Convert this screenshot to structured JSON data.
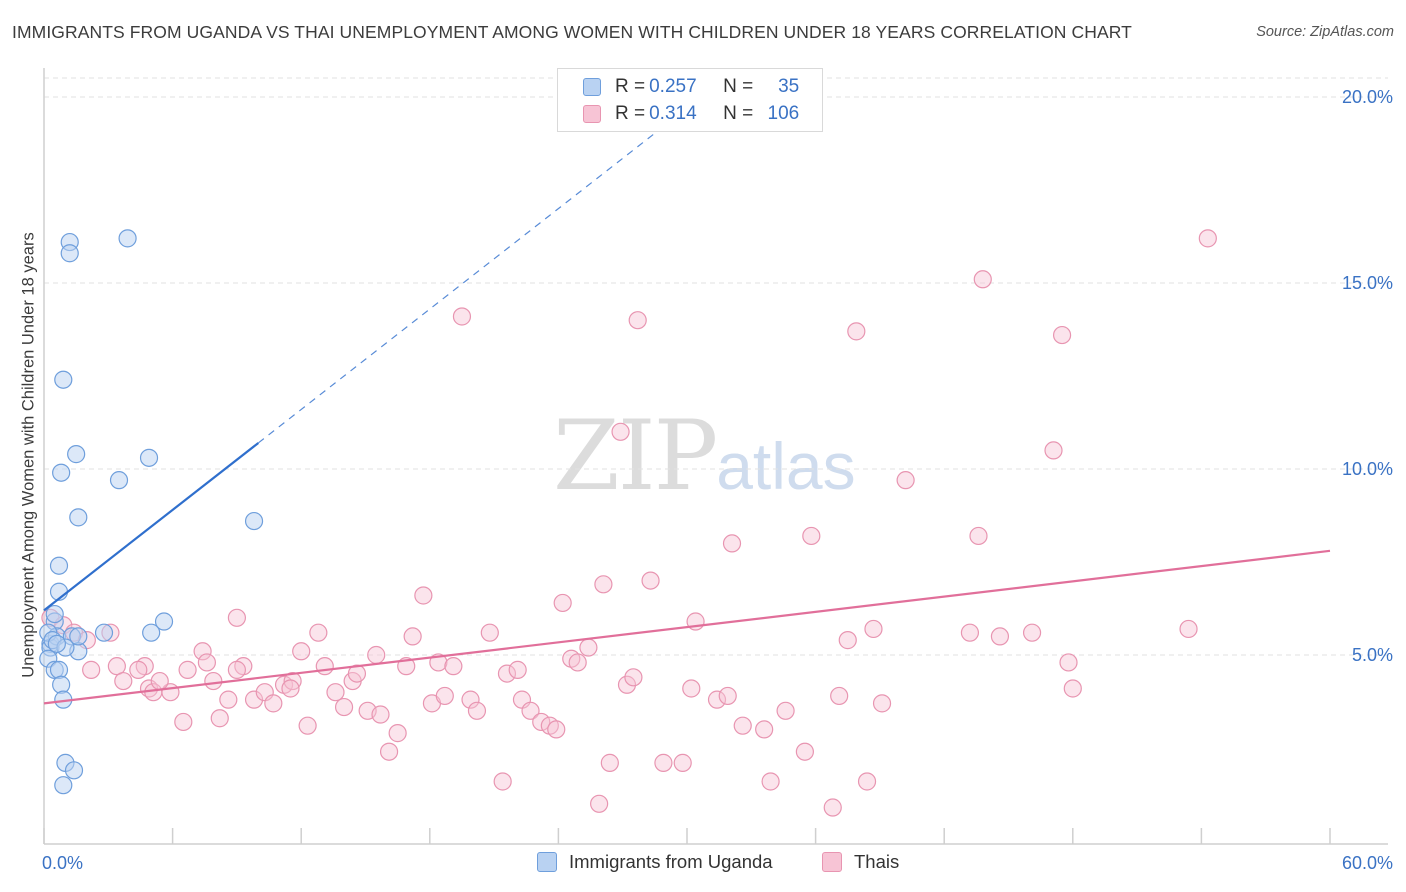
{
  "title": "IMMIGRANTS FROM UGANDA VS THAI UNEMPLOYMENT AMONG WOMEN WITH CHILDREN UNDER 18 YEARS CORRELATION CHART",
  "source": "Source: ZipAtlas.com",
  "watermark": {
    "zip": "ZIP",
    "atlas": "atlas"
  },
  "legend": {
    "uganda": {
      "r_label": "R = ",
      "r_value": "0.257",
      "n_label": "N = ",
      "n_value": "35"
    },
    "thai": {
      "r_label": "R = ",
      "r_value": "0.314",
      "n_label": "N = ",
      "n_value": "106"
    }
  },
  "colors": {
    "uganda_fill": "#b9d2f2",
    "uganda_stroke": "#6f9fdc",
    "uganda_line": "#2f6fcd",
    "thai_fill": "#f7c4d5",
    "thai_stroke": "#e895b1",
    "thai_line": "#e16f9a",
    "axis_text": "#3a72c4",
    "grid": "#e2e2e2"
  },
  "chart_data": {
    "type": "scatter",
    "title": "IMMIGRANTS FROM UGANDA VS THAI UNEMPLOYMENT AMONG WOMEN WITH CHILDREN UNDER 18 YEARS CORRELATION CHART",
    "xlabel": "",
    "ylabel": "Unemployment Among Women with Children Under 18 years",
    "xlim": [
      0,
      60
    ],
    "ylim": [
      0,
      21
    ],
    "x_tick_labels": [
      "0.0%",
      "60.0%"
    ],
    "y_ticks": [
      {
        "value": 5,
        "label": "5.0%"
      },
      {
        "value": 10,
        "label": "10.0%"
      },
      {
        "value": 15,
        "label": "15.0%"
      },
      {
        "value": 20,
        "label": "20.0%"
      }
    ],
    "legend_position": "bottom-center",
    "series": [
      {
        "name": "Immigrants from Uganda",
        "r": 0.257,
        "n": 35,
        "trend": {
          "x0": 0,
          "y0": 6.2,
          "x1": 10.0,
          "y1": 10.7,
          "dashed_to_x": 30.0
        },
        "points": [
          [
            1.2,
            16.1
          ],
          [
            1.2,
            15.8
          ],
          [
            3.9,
            16.2
          ],
          [
            0.9,
            12.4
          ],
          [
            1.5,
            10.4
          ],
          [
            4.9,
            10.3
          ],
          [
            0.8,
            9.9
          ],
          [
            3.5,
            9.7
          ],
          [
            1.6,
            8.7
          ],
          [
            9.8,
            8.6
          ],
          [
            0.7,
            7.4
          ],
          [
            0.7,
            6.7
          ],
          [
            0.5,
            5.9
          ],
          [
            0.5,
            6.1
          ],
          [
            0.3,
            5.3
          ],
          [
            0.3,
            5.2
          ],
          [
            0.6,
            5.5
          ],
          [
            0.2,
            4.9
          ],
          [
            0.5,
            4.6
          ],
          [
            0.7,
            4.6
          ],
          [
            1.3,
            5.5
          ],
          [
            1.6,
            5.1
          ],
          [
            2.8,
            5.6
          ],
          [
            5.6,
            5.9
          ],
          [
            5.0,
            5.6
          ],
          [
            0.8,
            4.2
          ],
          [
            0.9,
            3.8
          ],
          [
            1.0,
            2.1
          ],
          [
            1.4,
            1.9
          ],
          [
            0.9,
            1.5
          ],
          [
            0.2,
            5.6
          ],
          [
            0.4,
            5.4
          ],
          [
            1.0,
            5.2
          ],
          [
            1.6,
            5.5
          ],
          [
            0.6,
            5.3
          ]
        ]
      },
      {
        "name": "Thais",
        "r": 0.314,
        "n": 106,
        "trend": {
          "x0": 0,
          "y0": 3.7,
          "x1": 60,
          "y1": 7.8
        },
        "points": [
          [
            0.3,
            6.0
          ],
          [
            0.9,
            5.8
          ],
          [
            1.4,
            5.6
          ],
          [
            2.0,
            5.4
          ],
          [
            3.1,
            5.6
          ],
          [
            2.2,
            4.6
          ],
          [
            3.4,
            4.7
          ],
          [
            3.7,
            4.3
          ],
          [
            4.7,
            4.7
          ],
          [
            4.4,
            4.6
          ],
          [
            4.9,
            4.1
          ],
          [
            5.1,
            4.0
          ],
          [
            5.9,
            4.0
          ],
          [
            5.4,
            4.3
          ],
          [
            6.5,
            3.2
          ],
          [
            6.7,
            4.6
          ],
          [
            7.4,
            5.1
          ],
          [
            7.6,
            4.8
          ],
          [
            7.9,
            4.3
          ],
          [
            8.2,
            3.3
          ],
          [
            8.6,
            3.8
          ],
          [
            9.0,
            6.0
          ],
          [
            9.3,
            4.7
          ],
          [
            9.0,
            4.6
          ],
          [
            9.8,
            3.8
          ],
          [
            10.3,
            4.0
          ],
          [
            10.7,
            3.7
          ],
          [
            11.2,
            4.2
          ],
          [
            11.6,
            4.3
          ],
          [
            12.0,
            5.1
          ],
          [
            11.5,
            4.1
          ],
          [
            12.3,
            3.1
          ],
          [
            12.8,
            5.6
          ],
          [
            13.1,
            4.7
          ],
          [
            13.6,
            4.0
          ],
          [
            14.0,
            3.6
          ],
          [
            14.4,
            4.3
          ],
          [
            14.6,
            4.5
          ],
          [
            15.1,
            3.5
          ],
          [
            15.5,
            5.0
          ],
          [
            15.7,
            3.4
          ],
          [
            16.1,
            2.4
          ],
          [
            16.5,
            2.9
          ],
          [
            16.9,
            4.7
          ],
          [
            17.2,
            5.5
          ],
          [
            17.7,
            6.6
          ],
          [
            18.1,
            3.7
          ],
          [
            18.4,
            4.8
          ],
          [
            18.7,
            3.9
          ],
          [
            19.1,
            4.7
          ],
          [
            19.5,
            14.1
          ],
          [
            19.9,
            3.8
          ],
          [
            20.2,
            3.5
          ],
          [
            20.8,
            5.6
          ],
          [
            21.4,
            1.6
          ],
          [
            21.6,
            4.5
          ],
          [
            22.1,
            4.6
          ],
          [
            22.3,
            3.8
          ],
          [
            22.7,
            3.5
          ],
          [
            23.2,
            3.2
          ],
          [
            23.6,
            3.1
          ],
          [
            23.9,
            3.0
          ],
          [
            24.2,
            6.4
          ],
          [
            24.6,
            4.9
          ],
          [
            24.9,
            4.8
          ],
          [
            25.4,
            5.2
          ],
          [
            25.9,
            1.0
          ],
          [
            26.1,
            6.9
          ],
          [
            26.4,
            2.1
          ],
          [
            26.9,
            11.0
          ],
          [
            27.2,
            4.2
          ],
          [
            27.5,
            4.4
          ],
          [
            27.7,
            14.0
          ],
          [
            28.3,
            7.0
          ],
          [
            28.9,
            2.1
          ],
          [
            29.8,
            2.1
          ],
          [
            30.2,
            4.1
          ],
          [
            30.4,
            5.9
          ],
          [
            31.4,
            3.8
          ],
          [
            31.9,
            3.9
          ],
          [
            32.1,
            8.0
          ],
          [
            32.6,
            3.1
          ],
          [
            33.6,
            3.0
          ],
          [
            33.9,
            1.6
          ],
          [
            34.6,
            3.5
          ],
          [
            35.5,
            2.4
          ],
          [
            35.8,
            8.2
          ],
          [
            36.8,
            0.9
          ],
          [
            37.1,
            3.9
          ],
          [
            37.5,
            5.4
          ],
          [
            37.9,
            13.7
          ],
          [
            38.4,
            1.6
          ],
          [
            38.7,
            5.7
          ],
          [
            39.1,
            3.7
          ],
          [
            40.2,
            9.7
          ],
          [
            43.6,
            8.2
          ],
          [
            43.2,
            5.6
          ],
          [
            43.8,
            15.1
          ],
          [
            44.6,
            5.5
          ],
          [
            46.1,
            5.6
          ],
          [
            47.1,
            10.5
          ],
          [
            47.5,
            13.6
          ],
          [
            47.8,
            4.8
          ],
          [
            48.0,
            4.1
          ],
          [
            53.4,
            5.7
          ],
          [
            54.3,
            16.2
          ]
        ]
      }
    ]
  },
  "bottom_legend": {
    "uganda_label": "Immigrants from Uganda",
    "thai_label": "Thais"
  }
}
